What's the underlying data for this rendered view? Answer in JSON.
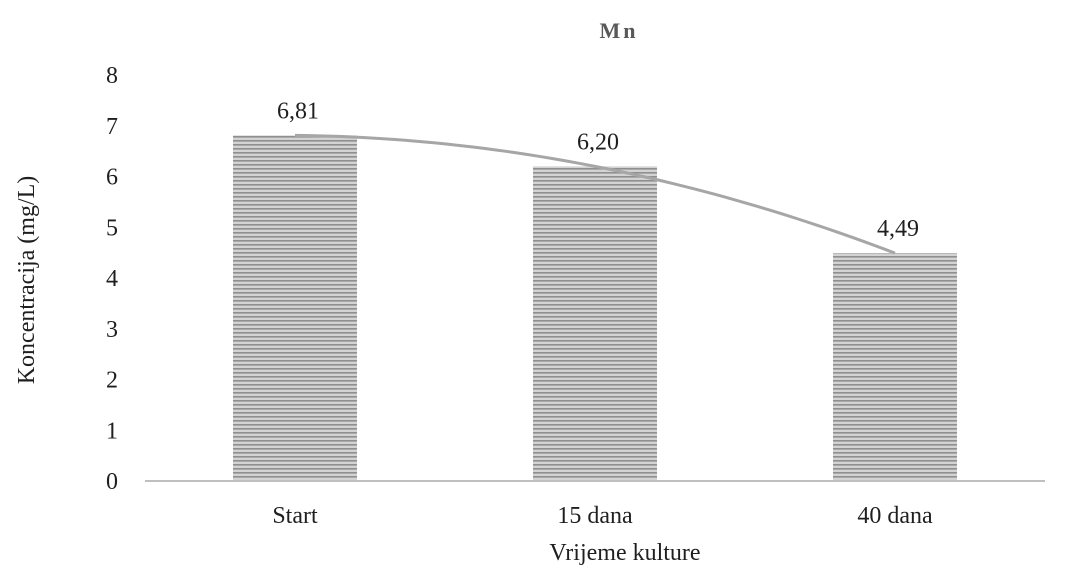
{
  "chart_data": {
    "type": "bar",
    "title": "Mn",
    "xlabel": "Vrijeme kulture",
    "ylabel": "Koncentracija (mg/L)",
    "categories": [
      "Start",
      "15 dana",
      "40 dana"
    ],
    "values": [
      6.81,
      6.2,
      4.49
    ],
    "value_labels": [
      "6,81",
      "6,20",
      "4,49"
    ],
    "ylim": [
      0,
      8
    ],
    "yticks": [
      0,
      1,
      2,
      3,
      4,
      5,
      6,
      7,
      8
    ],
    "grid": false,
    "legend": "none",
    "trendline": "polynomial",
    "colors": {
      "bar_fill": "#c6c6c6",
      "bar_stripe": "#8a8a8a",
      "trendline": "#a6a6a6",
      "axis": "#bfbfbf",
      "title": "#595959",
      "text": "#1f1f1f"
    }
  }
}
